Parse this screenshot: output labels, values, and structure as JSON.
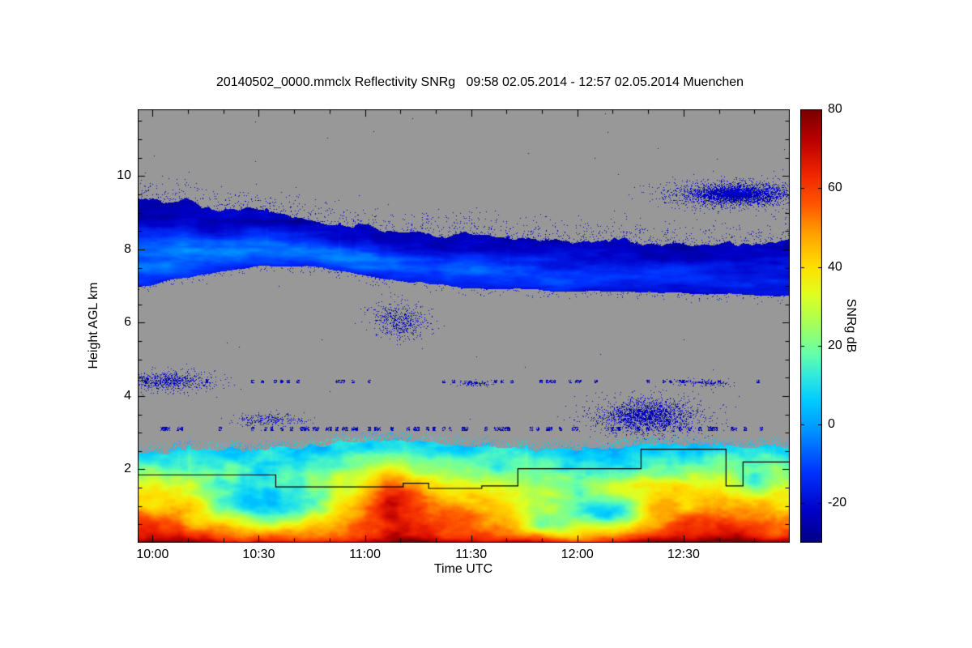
{
  "title": "20140502_0000.mmclx Reflectivity SNRg   09:58 02.05.2014 - 12:57 02.05.2014 Muenchen",
  "chart_data": {
    "type": "heatmap",
    "title": "20140502_0000.mmclx Reflectivity SNRg   09:58 02.05.2014 - 12:57 02.05.2014 Muenchen",
    "xlabel": "Time UTC",
    "ylabel": "Height AGL km",
    "colorbar_label": "SNRg dB",
    "station": "Muenchen",
    "time_start": "09:58 02.05.2014",
    "time_end": "12:57 02.05.2014",
    "x_domain_hours": [
      9.93,
      13.0
    ],
    "y_domain_km": [
      0,
      11.82
    ],
    "value_domain_db": [
      -30,
      80
    ],
    "x_ticks": [
      {
        "hour": 10.0,
        "label": "10:00"
      },
      {
        "hour": 10.5,
        "label": "10:30"
      },
      {
        "hour": 11.0,
        "label": "11:00"
      },
      {
        "hour": 11.5,
        "label": "11:30"
      },
      {
        "hour": 12.0,
        "label": "12:00"
      },
      {
        "hour": 12.5,
        "label": "12:30"
      }
    ],
    "x_minor_tick_hours": 0.1666667,
    "y_ticks": [
      {
        "km": 2,
        "label": "2"
      },
      {
        "km": 4,
        "label": "4"
      },
      {
        "km": 6,
        "label": "6"
      },
      {
        "km": 8,
        "label": "8"
      },
      {
        "km": 10,
        "label": "10"
      }
    ],
    "y_minor_tick_km": 0.5,
    "colorbar_ticks": [
      {
        "db": 80,
        "label": "80"
      },
      {
        "db": 60,
        "label": "60"
      },
      {
        "db": 40,
        "label": "40"
      },
      {
        "db": 20,
        "label": "20"
      },
      {
        "db": 0,
        "label": "0"
      },
      {
        "db": -20,
        "label": "-20"
      }
    ],
    "no_signal_color": "#989898",
    "colormap_stops": [
      [
        -30,
        "#000082"
      ],
      [
        -22,
        "#0000c8"
      ],
      [
        -12,
        "#0033ff"
      ],
      [
        -2,
        "#0090ff"
      ],
      [
        6,
        "#00ccff"
      ],
      [
        12,
        "#2ee8e0"
      ],
      [
        18,
        "#66ffaa"
      ],
      [
        26,
        "#aaff55"
      ],
      [
        33,
        "#e0ff20"
      ],
      [
        40,
        "#ffe000"
      ],
      [
        48,
        "#ffa500"
      ],
      [
        56,
        "#ff5500"
      ],
      [
        64,
        "#ee2200"
      ],
      [
        72,
        "#bb0000"
      ],
      [
        80,
        "#780000"
      ]
    ],
    "cloud_layer": {
      "description": "mid-level ice cloud band, weak SNR (blue), descending with time",
      "bottom_km": [
        [
          9.97,
          7.0
        ],
        [
          10.2,
          7.3
        ],
        [
          10.5,
          7.55
        ],
        [
          10.8,
          7.5
        ],
        [
          11.0,
          7.3
        ],
        [
          11.3,
          7.05
        ],
        [
          11.5,
          6.95
        ],
        [
          11.8,
          6.9
        ],
        [
          12.0,
          6.85
        ],
        [
          12.3,
          6.8
        ],
        [
          12.6,
          6.8
        ],
        [
          12.95,
          6.75
        ]
      ],
      "top_km": [
        [
          9.97,
          9.4
        ],
        [
          10.2,
          9.25
        ],
        [
          10.5,
          9.0
        ],
        [
          10.8,
          8.7
        ],
        [
          11.0,
          8.6
        ],
        [
          11.3,
          8.5
        ],
        [
          11.5,
          8.35
        ],
        [
          11.8,
          8.2
        ],
        [
          12.0,
          8.15
        ],
        [
          12.3,
          8.2
        ],
        [
          12.6,
          8.1
        ],
        [
          12.95,
          8.2
        ]
      ],
      "snr_db_range": [
        -28,
        -2
      ]
    },
    "boundary_layer": {
      "description": "boundary-layer echo below ~2.7 km, strong SNR, red near surface",
      "top_km": [
        [
          9.97,
          2.45
        ],
        [
          10.2,
          2.5
        ],
        [
          10.5,
          2.55
        ],
        [
          10.8,
          2.65
        ],
        [
          11.05,
          2.8
        ],
        [
          11.2,
          2.75
        ],
        [
          11.4,
          2.7
        ],
        [
          11.6,
          2.6
        ],
        [
          11.8,
          2.55
        ],
        [
          12.0,
          2.5
        ],
        [
          12.2,
          2.6
        ],
        [
          12.4,
          2.7
        ],
        [
          12.6,
          2.65
        ],
        [
          12.95,
          2.6
        ]
      ],
      "surface_snr_db": [
        [
          9.97,
          72
        ],
        [
          10.1,
          68
        ],
        [
          10.3,
          58
        ],
        [
          10.5,
          55
        ],
        [
          10.7,
          56
        ],
        [
          10.9,
          58
        ],
        [
          11.05,
          65
        ],
        [
          11.15,
          72
        ],
        [
          11.25,
          68
        ],
        [
          11.4,
          60
        ],
        [
          11.55,
          58
        ],
        [
          11.7,
          55
        ],
        [
          11.85,
          52
        ],
        [
          12.0,
          50
        ],
        [
          12.15,
          52
        ],
        [
          12.3,
          58
        ],
        [
          12.45,
          65
        ],
        [
          12.6,
          70
        ],
        [
          12.75,
          72
        ],
        [
          12.95,
          62
        ]
      ],
      "plume_boost_db": [
        [
          9.97,
          5
        ],
        [
          10.3,
          0
        ],
        [
          10.6,
          5
        ],
        [
          10.8,
          10
        ],
        [
          11.0,
          18
        ],
        [
          11.1,
          26
        ],
        [
          11.2,
          22
        ],
        [
          11.3,
          14
        ],
        [
          11.45,
          10
        ],
        [
          11.6,
          6
        ],
        [
          11.8,
          4
        ],
        [
          12.0,
          2
        ],
        [
          12.2,
          6
        ],
        [
          12.35,
          10
        ],
        [
          12.5,
          8
        ],
        [
          12.7,
          6
        ],
        [
          12.95,
          8
        ]
      ],
      "weak_holes": [
        {
          "t": 10.6,
          "h": 1.0,
          "rt": 0.28,
          "rh": 0.55,
          "amp_db": 35
        },
        {
          "t": 12.15,
          "h": 0.8,
          "rt": 0.18,
          "rh": 0.4,
          "amp_db": 30
        },
        {
          "t": 11.85,
          "h": 0.5,
          "rt": 0.12,
          "rh": 0.3,
          "amp_db": 28
        },
        {
          "t": 12.85,
          "h": 1.6,
          "rt": 0.1,
          "rh": 0.4,
          "amp_db": 20
        }
      ]
    },
    "speckle_rows": [
      {
        "km": 3.1,
        "threshold": 0.66
      },
      {
        "km": 4.4,
        "threshold": 0.84
      }
    ],
    "speckle_patches": [
      {
        "t": 10.07,
        "h": 4.4,
        "rt": 0.15,
        "rh": 0.2,
        "density": 0.45
      },
      {
        "t": 10.55,
        "h": 3.35,
        "rt": 0.12,
        "rh": 0.12,
        "density": 0.35
      },
      {
        "t": 11.17,
        "h": 6.05,
        "rt": 0.1,
        "rh": 0.35,
        "density": 0.3
      },
      {
        "t": 12.33,
        "h": 3.45,
        "rt": 0.18,
        "rh": 0.35,
        "density": 0.6
      },
      {
        "t": 12.6,
        "h": 4.35,
        "rt": 0.1,
        "rh": 0.08,
        "density": 0.4
      },
      {
        "t": 11.52,
        "h": 4.35,
        "rt": 0.06,
        "rh": 0.06,
        "density": 0.5
      },
      {
        "t": 12.75,
        "h": 9.5,
        "rt": 0.22,
        "rh": 0.25,
        "density": 0.85
      }
    ],
    "overlay_line": {
      "description": "black step line near 1.5-2.5 km",
      "color": "#000000",
      "points": [
        [
          9.93,
          1.85
        ],
        [
          10.58,
          1.85
        ],
        [
          10.58,
          1.52
        ],
        [
          11.18,
          1.52
        ],
        [
          11.18,
          1.62
        ],
        [
          11.3,
          1.62
        ],
        [
          11.3,
          1.48
        ],
        [
          11.55,
          1.48
        ],
        [
          11.55,
          1.55
        ],
        [
          11.72,
          1.55
        ],
        [
          11.72,
          2.02
        ],
        [
          12.3,
          2.02
        ],
        [
          12.3,
          2.55
        ],
        [
          12.7,
          2.55
        ],
        [
          12.7,
          1.55
        ],
        [
          12.78,
          1.55
        ],
        [
          12.78,
          2.2
        ],
        [
          13.0,
          2.2
        ]
      ]
    }
  }
}
